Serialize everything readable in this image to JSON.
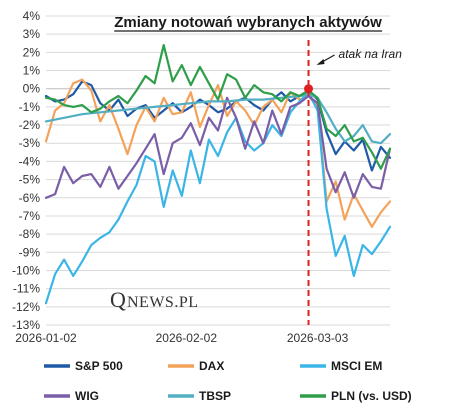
{
  "chart_data": {
    "type": "line",
    "title": "Zmiany notowań wybranych aktywów",
    "ylim": [
      -13,
      4
    ],
    "yticks": [
      4,
      3,
      2,
      1,
      0,
      -1,
      -2,
      -3,
      -4,
      -5,
      -6,
      -7,
      -8,
      -9,
      -10,
      -11,
      -12,
      -13
    ],
    "ytick_format": "percent",
    "xlim": [
      0,
      76
    ],
    "xticks": [
      {
        "x": 0,
        "label": "2026-01-02"
      },
      {
        "x": 31,
        "label": "2026-02-02"
      },
      {
        "x": 60,
        "label": "2026-03-03"
      }
    ],
    "grid": "horizontal",
    "annotation": {
      "text": "atak na Iran",
      "x": 58,
      "y": 0
    },
    "logo": {
      "q": "Q",
      "rest": "NEWS.PL"
    },
    "legend": {
      "placement": "bottom",
      "columns": 3
    },
    "series": [
      {
        "name": "S&P 500",
        "color": "#1f5aa6",
        "width": 2.2,
        "x": [
          0,
          2,
          4,
          6,
          8,
          10,
          12,
          14,
          16,
          18,
          20,
          22,
          24,
          26,
          28,
          30,
          32,
          34,
          36,
          38,
          40,
          42,
          44,
          46,
          48,
          50,
          52,
          54,
          56,
          58,
          60,
          62,
          64,
          66,
          68,
          70,
          72,
          74,
          76
        ],
        "y": [
          -0.4,
          -0.7,
          -0.6,
          -0.3,
          0.4,
          0.2,
          -0.8,
          -1.2,
          -0.6,
          -1.5,
          -1.1,
          -0.9,
          -1.6,
          -1.2,
          -0.8,
          -1.3,
          -1.0,
          -0.6,
          -0.9,
          -1.3,
          -1.1,
          -0.7,
          -0.5,
          -0.9,
          -1.2,
          -0.6,
          -0.2,
          -0.7,
          -0.4,
          -0.1,
          -0.6,
          -2.4,
          -3.6,
          -2.9,
          -3.4,
          -2.8,
          -4.5,
          -3.2,
          -3.8
        ]
      },
      {
        "name": "DAX",
        "color": "#f4a25a",
        "width": 2.2,
        "x": [
          0,
          2,
          4,
          6,
          8,
          10,
          12,
          14,
          16,
          18,
          20,
          22,
          24,
          26,
          28,
          30,
          32,
          34,
          36,
          38,
          40,
          42,
          44,
          46,
          48,
          50,
          52,
          54,
          56,
          58,
          60,
          62,
          64,
          66,
          68,
          70,
          72,
          74,
          76
        ],
        "y": [
          -2.9,
          -1.2,
          -0.8,
          0.3,
          0.5,
          -0.1,
          -1.8,
          -0.9,
          -2.2,
          -3.6,
          -2.0,
          -1.0,
          -1.8,
          -0.5,
          -1.4,
          -1.3,
          -0.2,
          -2.1,
          -0.9,
          0.2,
          -1.5,
          -0.7,
          -1.2,
          -2.0,
          -1.0,
          -0.6,
          -1.3,
          -0.2,
          -0.6,
          -0.4,
          -1.0,
          -6.2,
          -5.1,
          -7.2,
          -5.8,
          -6.7,
          -7.6,
          -6.8,
          -6.2
        ]
      },
      {
        "name": "MSCI EM",
        "color": "#3ab5e6",
        "width": 2.2,
        "x": [
          0,
          2,
          4,
          6,
          8,
          10,
          12,
          14,
          16,
          18,
          20,
          22,
          24,
          26,
          28,
          30,
          32,
          34,
          36,
          38,
          40,
          42,
          44,
          46,
          48,
          50,
          52,
          54,
          56,
          58,
          60,
          62,
          64,
          66,
          68,
          70,
          72,
          74,
          76
        ],
        "y": [
          -11.8,
          -10.2,
          -9.4,
          -10.3,
          -9.5,
          -8.6,
          -8.2,
          -7.9,
          -7.2,
          -6.2,
          -5.3,
          -3.7,
          -4.0,
          -6.5,
          -4.5,
          -5.9,
          -3.4,
          -5.2,
          -2.8,
          -3.7,
          -2.4,
          -1.6,
          -2.9,
          -3.4,
          -3.0,
          -2.0,
          -2.6,
          -1.3,
          -0.7,
          -0.2,
          -1.2,
          -6.6,
          -9.2,
          -8.1,
          -10.3,
          -8.6,
          -9.1,
          -8.4,
          -7.6
        ]
      },
      {
        "name": "WIG",
        "color": "#7a5ea8",
        "width": 2.2,
        "x": [
          0,
          2,
          4,
          6,
          8,
          10,
          12,
          14,
          16,
          18,
          20,
          22,
          24,
          26,
          28,
          30,
          32,
          34,
          36,
          38,
          40,
          42,
          44,
          46,
          48,
          50,
          52,
          54,
          56,
          58,
          60,
          62,
          64,
          66,
          68,
          70,
          72,
          74,
          76
        ],
        "y": [
          -6.0,
          -5.8,
          -4.3,
          -5.2,
          -4.8,
          -4.7,
          -5.4,
          -4.3,
          -5.5,
          -4.8,
          -4.1,
          -3.3,
          -2.5,
          -4.7,
          -3.0,
          -2.7,
          -1.9,
          -3.1,
          -1.6,
          -2.3,
          -0.5,
          -1.6,
          -3.3,
          -1.8,
          -3.0,
          -1.2,
          -2.5,
          -1.0,
          -0.8,
          -0.4,
          -0.8,
          -4.4,
          -5.7,
          -4.6,
          -6.0,
          -4.7,
          -5.4,
          -5.5,
          -3.3
        ]
      },
      {
        "name": "TBSP",
        "color": "#52aec2",
        "width": 2.2,
        "x": [
          0,
          4,
          8,
          12,
          16,
          20,
          24,
          28,
          32,
          36,
          40,
          44,
          48,
          52,
          56,
          58,
          60,
          62,
          64,
          66,
          68,
          70,
          72,
          74,
          76
        ],
        "y": [
          -1.8,
          -1.6,
          -1.4,
          -1.3,
          -1.2,
          -1.1,
          -1.0,
          -0.9,
          -0.8,
          -0.7,
          -0.7,
          -0.6,
          -0.6,
          -0.5,
          -0.4,
          -0.3,
          -0.5,
          -1.3,
          -2.2,
          -2.9,
          -2.6,
          -2.0,
          -2.9,
          -3.0,
          -2.5
        ]
      },
      {
        "name": "PLN (vs. USD)",
        "color": "#2e9e4a",
        "width": 2.2,
        "x": [
          0,
          2,
          4,
          6,
          8,
          10,
          12,
          14,
          16,
          18,
          20,
          22,
          24,
          26,
          28,
          30,
          32,
          34,
          36,
          38,
          40,
          42,
          44,
          46,
          48,
          50,
          52,
          54,
          56,
          58,
          60,
          62,
          64,
          66,
          68,
          70,
          72,
          74,
          76
        ],
        "y": [
          -0.5,
          -0.6,
          -0.9,
          -1.0,
          -0.9,
          -1.3,
          -1.1,
          -0.7,
          -0.4,
          -0.8,
          -0.1,
          0.7,
          0.3,
          2.4,
          0.4,
          1.3,
          0.2,
          1.2,
          0.3,
          -0.6,
          0.8,
          0.5,
          -0.5,
          0.2,
          -0.2,
          -0.3,
          -0.7,
          -0.2,
          -0.4,
          -0.1,
          -0.5,
          -2.2,
          -2.6,
          -2.0,
          -2.9,
          -2.7,
          -3.5,
          -4.4,
          -3.3
        ]
      }
    ]
  }
}
